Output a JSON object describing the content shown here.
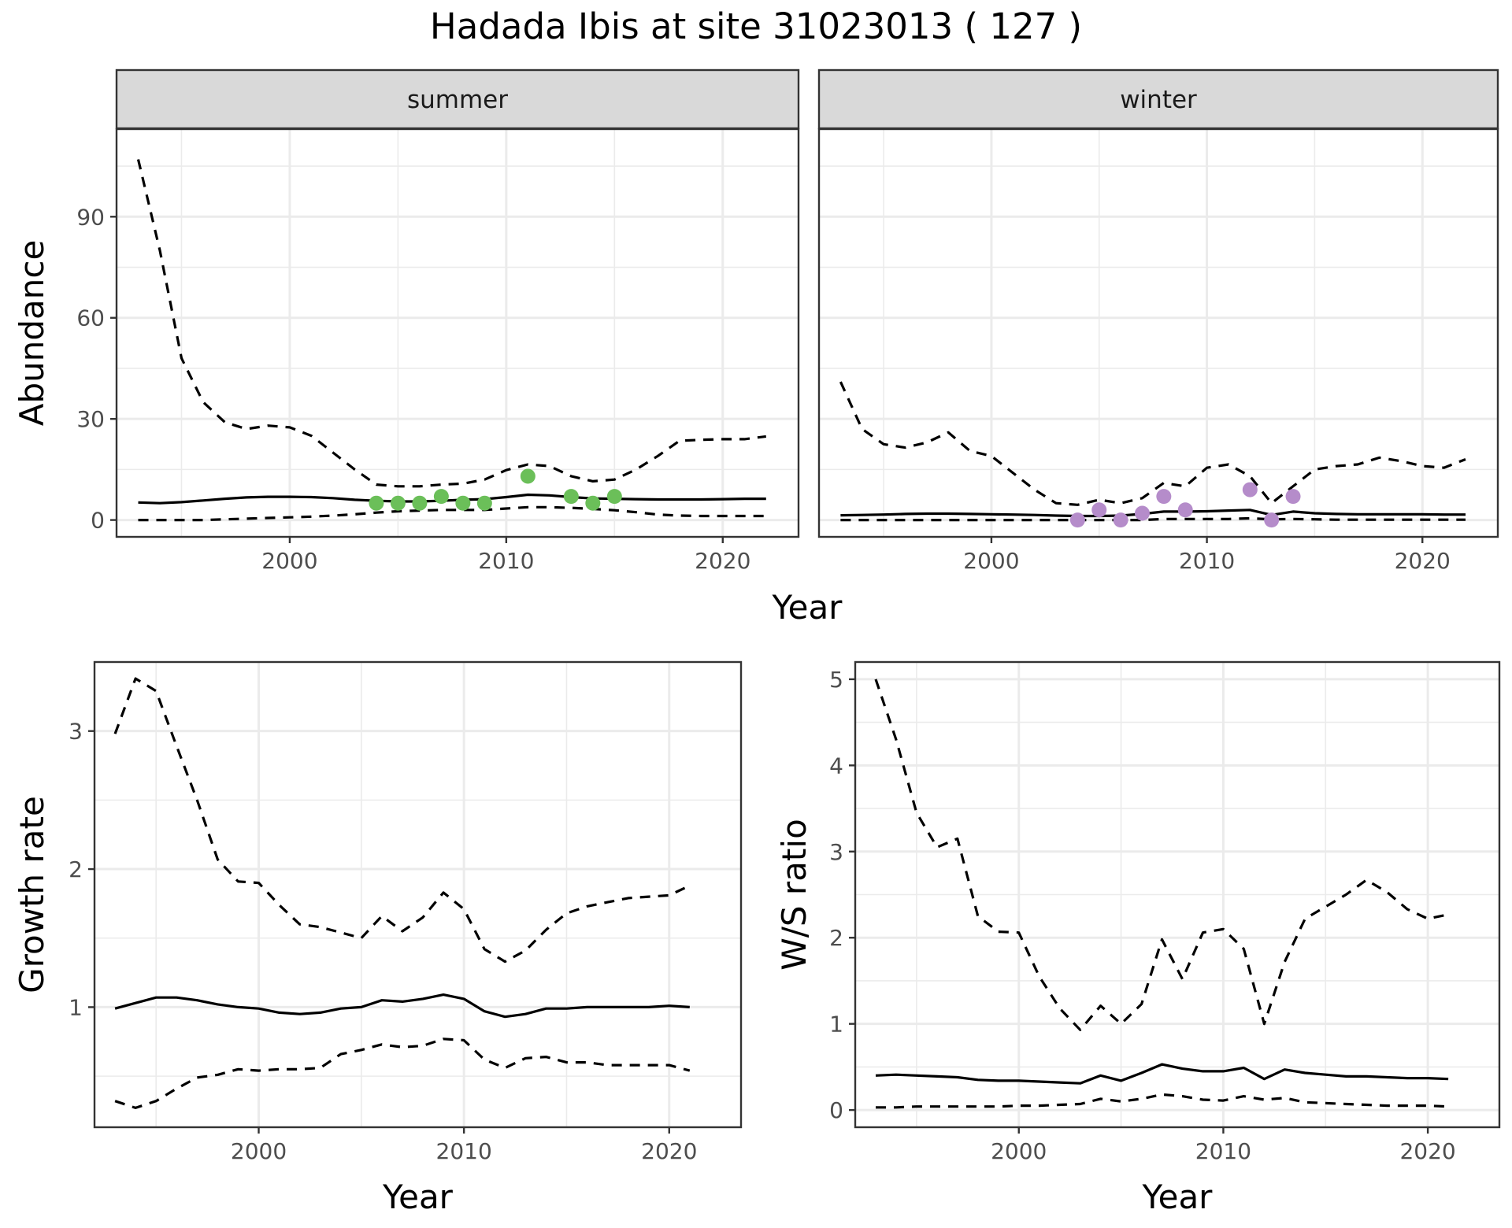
{
  "title": "Hadada Ibis at site 31023013 ( 127 )",
  "colors": {
    "summer_points": "#6bbf59",
    "winter_points": "#b58cca",
    "lines": "#000000"
  },
  "chart_data": [
    {
      "type": "line",
      "facet": "summer",
      "xlabel": "Year",
      "ylabel": "Abundance",
      "xlim": [
        1992,
        2023.5
      ],
      "ylim": [
        -5,
        116
      ],
      "xticks": [
        2000,
        2010,
        2020
      ],
      "yticks": [
        0,
        30,
        60,
        90
      ],
      "grid": true,
      "series": [
        {
          "style": "solid",
          "x": [
            1993,
            1994,
            1995,
            1996,
            1997,
            1998,
            1999,
            2000,
            2001,
            2002,
            2003,
            2004,
            2005,
            2006,
            2007,
            2008,
            2009,
            2010,
            2011,
            2012,
            2013,
            2014,
            2015,
            2016,
            2017,
            2018,
            2019,
            2020,
            2021,
            2022
          ],
          "values": [
            5.2,
            5.0,
            5.3,
            5.8,
            6.3,
            6.7,
            6.9,
            6.9,
            6.8,
            6.5,
            6.0,
            5.7,
            5.5,
            5.5,
            5.7,
            6.0,
            6.2,
            6.8,
            7.5,
            7.3,
            6.8,
            6.4,
            6.3,
            6.2,
            6.1,
            6.1,
            6.1,
            6.2,
            6.3,
            6.3
          ]
        },
        {
          "style": "dashed",
          "x": [
            1993,
            1994,
            1995,
            1996,
            1997,
            1998,
            1999,
            2000,
            2001,
            2002,
            2003,
            2004,
            2005,
            2006,
            2007,
            2008,
            2009,
            2010,
            2011,
            2012,
            2013,
            2014,
            2015,
            2016,
            2017,
            2018,
            2019,
            2020,
            2021,
            2022
          ],
          "values": [
            107,
            80,
            48,
            35,
            29,
            27,
            28,
            27.5,
            25,
            20,
            15,
            10.5,
            10,
            10,
            10.5,
            10.8,
            12,
            14.8,
            16.5,
            16,
            13,
            11.5,
            12,
            15,
            19,
            23.5,
            23.8,
            24,
            24,
            24.8
          ]
        },
        {
          "style": "dashed",
          "x": [
            1993,
            1994,
            1995,
            1996,
            1997,
            1998,
            1999,
            2000,
            2001,
            2002,
            2003,
            2004,
            2005,
            2006,
            2007,
            2008,
            2009,
            2010,
            2011,
            2012,
            2013,
            2014,
            2015,
            2016,
            2017,
            2018,
            2019,
            2020,
            2021,
            2022
          ],
          "values": [
            0,
            0,
            0,
            0,
            0.2,
            0.4,
            0.6,
            0.8,
            1.0,
            1.3,
            1.7,
            2.2,
            2.6,
            2.8,
            3.0,
            3.0,
            3.0,
            3.4,
            3.8,
            3.8,
            3.6,
            3.3,
            2.9,
            2.3,
            1.6,
            1.3,
            1.2,
            1.2,
            1.2,
            1.2
          ]
        },
        {
          "style": "points",
          "x": [
            2004,
            2005,
            2006,
            2007,
            2008,
            2009,
            2011,
            2013,
            2014,
            2015
          ],
          "values": [
            5,
            5,
            5,
            7,
            5,
            5,
            13,
            7,
            5,
            7
          ]
        }
      ]
    },
    {
      "type": "line",
      "facet": "winter",
      "xlabel": "Year",
      "ylabel": "Abundance",
      "xlim": [
        1992,
        2023.5
      ],
      "ylim": [
        -5,
        116
      ],
      "xticks": [
        2000,
        2010,
        2020
      ],
      "yticks": [
        0,
        30,
        60,
        90
      ],
      "grid": true,
      "series": [
        {
          "style": "solid",
          "x": [
            1993,
            1994,
            1995,
            1996,
            1997,
            1998,
            1999,
            2000,
            2001,
            2002,
            2003,
            2004,
            2005,
            2006,
            2007,
            2008,
            2009,
            2010,
            2011,
            2012,
            2013,
            2014,
            2015,
            2016,
            2017,
            2018,
            2019,
            2020,
            2021,
            2022
          ],
          "values": [
            1.4,
            1.5,
            1.6,
            1.8,
            1.9,
            1.9,
            1.8,
            1.7,
            1.6,
            1.5,
            1.3,
            1.2,
            1.2,
            1.3,
            1.8,
            2.5,
            2.5,
            2.6,
            2.8,
            3.0,
            1.5,
            2.5,
            2.0,
            1.8,
            1.7,
            1.7,
            1.7,
            1.7,
            1.6,
            1.6
          ]
        },
        {
          "style": "dashed",
          "x": [
            1993,
            1994,
            1995,
            1996,
            1997,
            1998,
            1999,
            2000,
            2001,
            2002,
            2003,
            2004,
            2005,
            2006,
            2007,
            2008,
            2009,
            2010,
            2011,
            2012,
            2013,
            2014,
            2015,
            2016,
            2017,
            2018,
            2019,
            2020,
            2021,
            2022
          ],
          "values": [
            41,
            27,
            22.5,
            21.5,
            23,
            26,
            20.5,
            19,
            14,
            9,
            5,
            4.5,
            6,
            5,
            6.5,
            11,
            10,
            15.5,
            16.5,
            13,
            5,
            10,
            15,
            16,
            16.5,
            18.5,
            17.5,
            16,
            15.5,
            18
          ]
        },
        {
          "style": "dashed",
          "x": [
            1993,
            1994,
            1995,
            1996,
            1997,
            1998,
            1999,
            2000,
            2001,
            2002,
            2003,
            2004,
            2005,
            2006,
            2007,
            2008,
            2009,
            2010,
            2011,
            2012,
            2013,
            2014,
            2015,
            2016,
            2017,
            2018,
            2019,
            2020,
            2021,
            2022
          ],
          "values": [
            0,
            0,
            0,
            0,
            0,
            0,
            0,
            0,
            0,
            0,
            0,
            0,
            0,
            0,
            0,
            0.3,
            0.3,
            0.3,
            0.3,
            0.5,
            0.2,
            0.3,
            0.2,
            0.1,
            0.1,
            0.1,
            0.1,
            0.1,
            0.1,
            0.1
          ]
        },
        {
          "style": "points",
          "x": [
            2004,
            2005,
            2006,
            2007,
            2008,
            2009,
            2012,
            2013,
            2014
          ],
          "values": [
            0,
            3,
            0,
            2,
            7,
            3,
            9,
            0,
            7
          ]
        }
      ]
    },
    {
      "type": "line",
      "xlabel": "Year",
      "ylabel": "Growth rate",
      "xlim": [
        1992,
        2023.5
      ],
      "ylim": [
        0.13,
        3.5
      ],
      "xticks": [
        2000,
        2010,
        2020
      ],
      "yticks": [
        1,
        2,
        3
      ],
      "grid": true,
      "series": [
        {
          "style": "solid",
          "x": [
            1993,
            1994,
            1995,
            1996,
            1997,
            1998,
            1999,
            2000,
            2001,
            2002,
            2003,
            2004,
            2005,
            2006,
            2007,
            2008,
            2009,
            2010,
            2011,
            2012,
            2013,
            2014,
            2015,
            2016,
            2017,
            2018,
            2019,
            2020,
            2021
          ],
          "values": [
            0.99,
            1.03,
            1.07,
            1.07,
            1.05,
            1.02,
            1.0,
            0.99,
            0.96,
            0.95,
            0.96,
            0.99,
            1.0,
            1.05,
            1.04,
            1.06,
            1.09,
            1.06,
            0.97,
            0.93,
            0.95,
            0.99,
            0.99,
            1.0,
            1.0,
            1.0,
            1.0,
            1.01,
            1.0
          ]
        },
        {
          "style": "dashed",
          "x": [
            1993,
            1994,
            1995,
            1996,
            1997,
            1998,
            1999,
            2000,
            2001,
            2002,
            2003,
            2004,
            2005,
            2006,
            2007,
            2008,
            2009,
            2010,
            2011,
            2012,
            2013,
            2014,
            2015,
            2016,
            2017,
            2018,
            2019,
            2020,
            2021
          ],
          "values": [
            2.98,
            3.38,
            3.29,
            2.89,
            2.5,
            2.07,
            1.91,
            1.9,
            1.74,
            1.6,
            1.58,
            1.54,
            1.5,
            1.66,
            1.55,
            1.65,
            1.83,
            1.71,
            1.42,
            1.33,
            1.41,
            1.56,
            1.68,
            1.73,
            1.76,
            1.79,
            1.8,
            1.81,
            1.88
          ]
        },
        {
          "style": "dashed",
          "x": [
            1993,
            1994,
            1995,
            1996,
            1997,
            1998,
            1999,
            2000,
            2001,
            2002,
            2003,
            2004,
            2005,
            2006,
            2007,
            2008,
            2009,
            2010,
            2011,
            2012,
            2013,
            2014,
            2015,
            2016,
            2017,
            2018,
            2019,
            2020,
            2021
          ],
          "values": [
            0.32,
            0.27,
            0.32,
            0.41,
            0.49,
            0.51,
            0.55,
            0.54,
            0.55,
            0.55,
            0.56,
            0.66,
            0.69,
            0.73,
            0.71,
            0.72,
            0.77,
            0.76,
            0.62,
            0.56,
            0.63,
            0.64,
            0.6,
            0.6,
            0.58,
            0.58,
            0.58,
            0.58,
            0.54
          ]
        }
      ]
    },
    {
      "type": "line",
      "xlabel": "Year",
      "ylabel": "W/S ratio",
      "xlim": [
        1992,
        2023.5
      ],
      "ylim": [
        -0.2,
        5.2
      ],
      "xticks": [
        2000,
        2010,
        2020
      ],
      "yticks": [
        0,
        1,
        2,
        3,
        4,
        5
      ],
      "grid": true,
      "series": [
        {
          "style": "solid",
          "x": [
            1993,
            1994,
            1995,
            1996,
            1997,
            1998,
            1999,
            2000,
            2001,
            2002,
            2003,
            2004,
            2005,
            2006,
            2007,
            2008,
            2009,
            2010,
            2011,
            2012,
            2013,
            2014,
            2015,
            2016,
            2017,
            2018,
            2019,
            2020,
            2021
          ],
          "values": [
            0.4,
            0.41,
            0.4,
            0.39,
            0.38,
            0.35,
            0.34,
            0.34,
            0.33,
            0.32,
            0.31,
            0.4,
            0.34,
            0.43,
            0.53,
            0.48,
            0.45,
            0.45,
            0.49,
            0.36,
            0.47,
            0.43,
            0.41,
            0.39,
            0.39,
            0.38,
            0.37,
            0.37,
            0.36
          ]
        },
        {
          "style": "dashed",
          "x": [
            1993,
            1994,
            1995,
            1996,
            1997,
            1998,
            1999,
            2000,
            2001,
            2002,
            2003,
            2004,
            2005,
            2006,
            2007,
            2008,
            2009,
            2010,
            2011,
            2012,
            2013,
            2014,
            2015,
            2016,
            2017,
            2018,
            2019,
            2020,
            2021
          ],
          "values": [
            5.0,
            4.3,
            3.45,
            3.05,
            3.15,
            2.25,
            2.07,
            2.06,
            1.55,
            1.18,
            0.93,
            1.21,
            1.0,
            1.23,
            1.98,
            1.52,
            2.06,
            2.1,
            1.87,
            1.0,
            1.72,
            2.22,
            2.36,
            2.5,
            2.67,
            2.53,
            2.33,
            2.22,
            2.27
          ]
        },
        {
          "style": "dashed",
          "x": [
            1993,
            1994,
            1995,
            1996,
            1997,
            1998,
            1999,
            2000,
            2001,
            2002,
            2003,
            2004,
            2005,
            2006,
            2007,
            2008,
            2009,
            2010,
            2011,
            2012,
            2013,
            2014,
            2015,
            2016,
            2017,
            2018,
            2019,
            2020,
            2021
          ],
          "values": [
            0.03,
            0.03,
            0.04,
            0.04,
            0.04,
            0.04,
            0.04,
            0.05,
            0.05,
            0.06,
            0.07,
            0.13,
            0.1,
            0.13,
            0.18,
            0.16,
            0.12,
            0.11,
            0.16,
            0.12,
            0.14,
            0.09,
            0.08,
            0.07,
            0.06,
            0.05,
            0.05,
            0.05,
            0.04
          ]
        }
      ]
    }
  ]
}
